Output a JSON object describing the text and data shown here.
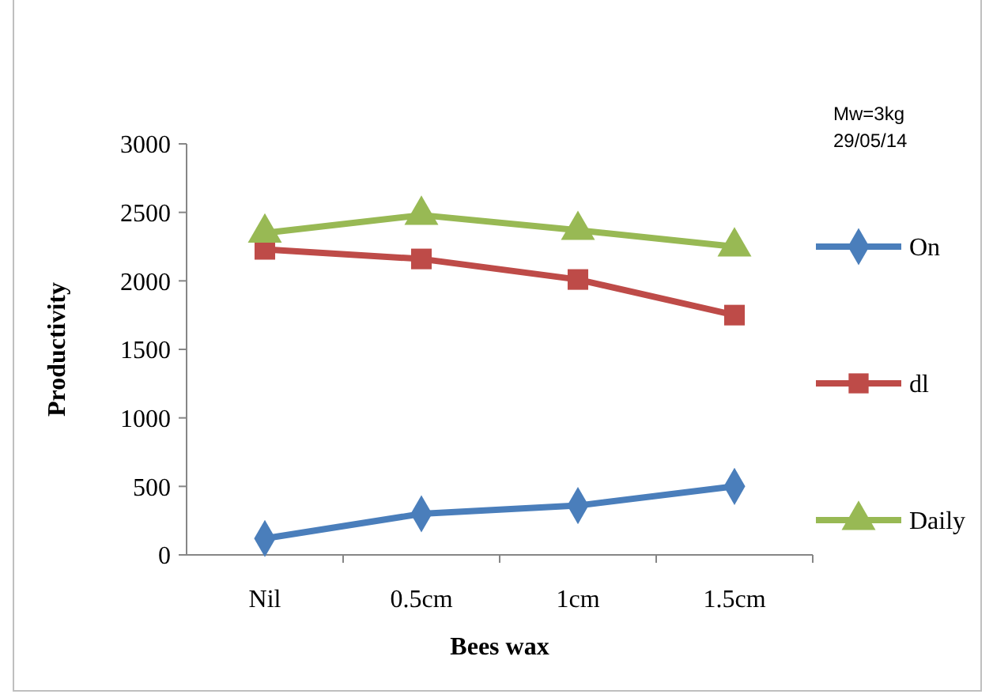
{
  "chart_data": {
    "type": "line",
    "xlabel": "Bees wax",
    "ylabel": "Productivity",
    "categories": [
      "Nil",
      "0.5cm",
      "1cm",
      "1.5cm"
    ],
    "series": [
      {
        "name": "On",
        "color": "#4a7ebb",
        "marker": "diamond",
        "values": [
          120,
          300,
          360,
          500
        ]
      },
      {
        "name": "dl",
        "color": "#be4b48",
        "marker": "square",
        "values": [
          2230,
          2160,
          2010,
          1750
        ]
      },
      {
        "name": "Daily",
        "color": "#98b954",
        "marker": "triangle",
        "values": [
          2350,
          2480,
          2370,
          2250
        ]
      }
    ],
    "ylim": [
      0,
      3000
    ],
    "yticks": [
      0,
      500,
      1000,
      1500,
      2000,
      2500,
      3000
    ],
    "grid": false,
    "legend": "right",
    "line_style": "solid",
    "annotations": [
      "Mw=3kg",
      "29/05/14"
    ]
  }
}
